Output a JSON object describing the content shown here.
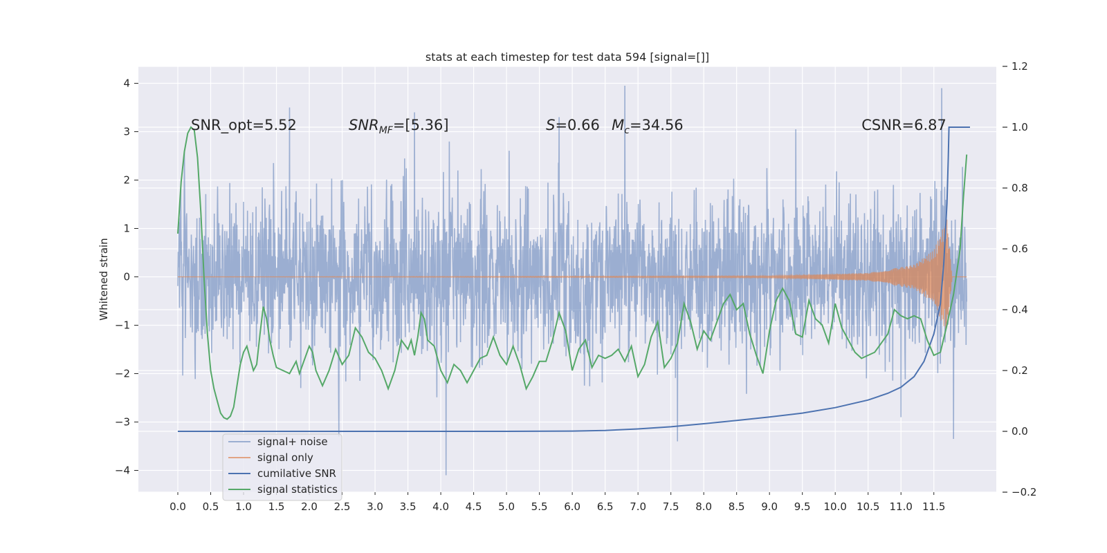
{
  "chart_data": {
    "type": "line",
    "title": "stats at each timestep for test data 594 [signal=[]]",
    "ylabel": "Whitened strain",
    "xlabel": "",
    "xlim": [
      -0.6,
      12.45
    ],
    "ylim": [
      -4.45,
      4.35
    ],
    "y2lim": [
      -0.2,
      1.2
    ],
    "grid": true,
    "legend_position": "lower-left",
    "x_ticks": [
      0.0,
      0.5,
      1.0,
      1.5,
      2.0,
      2.5,
      3.0,
      3.5,
      4.0,
      4.5,
      5.0,
      5.5,
      6.0,
      6.5,
      7.0,
      7.5,
      8.0,
      8.5,
      9.0,
      9.5,
      10.0,
      10.5,
      11.0,
      11.5
    ],
    "x_tick_labels": [
      "0.0",
      "0.5",
      "1.0",
      "1.5",
      "2.0",
      "2.5",
      "3.0",
      "3.5",
      "4.0",
      "4.5",
      "5.0",
      "5.5",
      "6.0",
      "6.5",
      "7.0",
      "7.5",
      "8.0",
      "8.5",
      "9.0",
      "9.5",
      "10.0",
      "10.5",
      "11.0",
      "11.5"
    ],
    "y_ticks": [
      4,
      3,
      2,
      1,
      0,
      -1,
      -2,
      -3,
      -4
    ],
    "y_tick_labels": [
      "4",
      "3",
      "2",
      "1",
      "0",
      "−1",
      "−2",
      "−3",
      "−4"
    ],
    "y2_ticks": [
      1.2,
      1.0,
      0.8,
      0.6,
      0.4,
      0.2,
      0.0,
      -0.2
    ],
    "y2_tick_labels": [
      "1.2",
      "1.0",
      "0.8",
      "0.6",
      "0.4",
      "0.2",
      "0.0",
      "−0.2"
    ],
    "annotations": [
      {
        "text": "SNR_opt=5.52",
        "x": 0.2,
        "y": 3.15
      },
      {
        "text": "SNR_MF=[5.36]",
        "x": 2.6,
        "y": 3.15
      },
      {
        "text": "S=0.66",
        "x": 5.6,
        "y": 3.15
      },
      {
        "text": "M_c=34.56",
        "x": 6.6,
        "y": 3.15
      },
      {
        "text": "CSNR=6.87",
        "x": 10.4,
        "y": 3.15
      }
    ],
    "series": [
      {
        "name": "signal+ noise",
        "color": "#4c72b0",
        "axis": "left",
        "x_range": [
          0.0,
          12.0
        ],
        "noise_sigma": 0.85,
        "peaks": [
          [
            0.1,
            2.6
          ],
          [
            1.7,
            3.5
          ],
          [
            2.45,
            -3.3
          ],
          [
            3.6,
            3.4
          ],
          [
            4.08,
            -4.1
          ],
          [
            5.8,
            3.3
          ],
          [
            6.8,
            3.95
          ],
          [
            7.6,
            -3.4
          ],
          [
            9.4,
            3.05
          ],
          [
            11.0,
            -2.9
          ],
          [
            11.62,
            3.9
          ],
          [
            11.8,
            -3.35
          ]
        ]
      },
      {
        "name": "signal only",
        "color": "#dd8452",
        "axis": "left",
        "x_range": [
          0.0,
          12.0
        ],
        "description_points": [
          [
            0.0,
            0.0
          ],
          [
            9.0,
            0.02
          ],
          [
            10.5,
            0.08
          ],
          [
            11.2,
            0.25
          ],
          [
            11.5,
            0.55
          ],
          [
            11.7,
            1.2
          ],
          [
            11.78,
            0.0
          ],
          [
            12.0,
            0.0
          ]
        ]
      },
      {
        "name": "cumilative SNR",
        "color": "#4c72b0",
        "axis": "right",
        "points": [
          [
            0.0,
            0.0
          ],
          [
            5.0,
            0.0
          ],
          [
            6.0,
            0.001
          ],
          [
            6.5,
            0.003
          ],
          [
            7.0,
            0.008
          ],
          [
            7.5,
            0.015
          ],
          [
            8.0,
            0.025
          ],
          [
            8.5,
            0.036
          ],
          [
            9.0,
            0.047
          ],
          [
            9.5,
            0.06
          ],
          [
            10.0,
            0.078
          ],
          [
            10.5,
            0.103
          ],
          [
            10.8,
            0.125
          ],
          [
            11.0,
            0.145
          ],
          [
            11.2,
            0.18
          ],
          [
            11.35,
            0.23
          ],
          [
            11.5,
            0.32
          ],
          [
            11.6,
            0.42
          ],
          [
            11.65,
            0.55
          ],
          [
            11.7,
            0.75
          ],
          [
            11.72,
            0.9
          ],
          [
            11.73,
            1.0
          ],
          [
            12.05,
            1.0
          ]
        ]
      },
      {
        "name": "signal statistics",
        "color": "#55a868",
        "axis": "right",
        "points": [
          [
            0.0,
            0.65
          ],
          [
            0.05,
            0.82
          ],
          [
            0.1,
            0.92
          ],
          [
            0.15,
            0.98
          ],
          [
            0.2,
            1.0
          ],
          [
            0.25,
            0.99
          ],
          [
            0.3,
            0.9
          ],
          [
            0.35,
            0.72
          ],
          [
            0.4,
            0.5
          ],
          [
            0.45,
            0.32
          ],
          [
            0.5,
            0.2
          ],
          [
            0.55,
            0.14
          ],
          [
            0.6,
            0.1
          ],
          [
            0.65,
            0.06
          ],
          [
            0.7,
            0.045
          ],
          [
            0.75,
            0.04
          ],
          [
            0.8,
            0.05
          ],
          [
            0.85,
            0.08
          ],
          [
            0.9,
            0.15
          ],
          [
            0.95,
            0.22
          ],
          [
            1.0,
            0.26
          ],
          [
            1.05,
            0.28
          ],
          [
            1.1,
            0.24
          ],
          [
            1.15,
            0.2
          ],
          [
            1.2,
            0.22
          ],
          [
            1.25,
            0.32
          ],
          [
            1.3,
            0.41
          ],
          [
            1.35,
            0.37
          ],
          [
            1.4,
            0.3
          ],
          [
            1.45,
            0.25
          ],
          [
            1.5,
            0.21
          ],
          [
            1.6,
            0.2
          ],
          [
            1.7,
            0.19
          ],
          [
            1.8,
            0.23
          ],
          [
            1.85,
            0.19
          ],
          [
            1.9,
            0.22
          ],
          [
            2.0,
            0.28
          ],
          [
            2.05,
            0.26
          ],
          [
            2.1,
            0.2
          ],
          [
            2.2,
            0.15
          ],
          [
            2.3,
            0.2
          ],
          [
            2.4,
            0.27
          ],
          [
            2.5,
            0.22
          ],
          [
            2.6,
            0.25
          ],
          [
            2.7,
            0.34
          ],
          [
            2.8,
            0.31
          ],
          [
            2.9,
            0.26
          ],
          [
            3.0,
            0.24
          ],
          [
            3.1,
            0.2
          ],
          [
            3.2,
            0.14
          ],
          [
            3.3,
            0.2
          ],
          [
            3.4,
            0.3
          ],
          [
            3.5,
            0.27
          ],
          [
            3.55,
            0.3
          ],
          [
            3.6,
            0.25
          ],
          [
            3.65,
            0.31
          ],
          [
            3.7,
            0.39
          ],
          [
            3.75,
            0.37
          ],
          [
            3.8,
            0.3
          ],
          [
            3.9,
            0.28
          ],
          [
            4.0,
            0.2
          ],
          [
            4.1,
            0.16
          ],
          [
            4.2,
            0.22
          ],
          [
            4.3,
            0.2
          ],
          [
            4.4,
            0.16
          ],
          [
            4.5,
            0.2
          ],
          [
            4.6,
            0.24
          ],
          [
            4.7,
            0.25
          ],
          [
            4.8,
            0.31
          ],
          [
            4.9,
            0.25
          ],
          [
            5.0,
            0.22
          ],
          [
            5.1,
            0.28
          ],
          [
            5.2,
            0.22
          ],
          [
            5.3,
            0.14
          ],
          [
            5.4,
            0.18
          ],
          [
            5.5,
            0.23
          ],
          [
            5.6,
            0.23
          ],
          [
            5.7,
            0.3
          ],
          [
            5.8,
            0.39
          ],
          [
            5.9,
            0.33
          ],
          [
            6.0,
            0.2
          ],
          [
            6.1,
            0.27
          ],
          [
            6.2,
            0.3
          ],
          [
            6.3,
            0.21
          ],
          [
            6.4,
            0.25
          ],
          [
            6.5,
            0.24
          ],
          [
            6.6,
            0.25
          ],
          [
            6.7,
            0.27
          ],
          [
            6.8,
            0.23
          ],
          [
            6.9,
            0.28
          ],
          [
            7.0,
            0.18
          ],
          [
            7.1,
            0.22
          ],
          [
            7.2,
            0.31
          ],
          [
            7.3,
            0.36
          ],
          [
            7.4,
            0.21
          ],
          [
            7.5,
            0.24
          ],
          [
            7.6,
            0.29
          ],
          [
            7.7,
            0.42
          ],
          [
            7.8,
            0.36
          ],
          [
            7.9,
            0.27
          ],
          [
            8.0,
            0.33
          ],
          [
            8.1,
            0.3
          ],
          [
            8.2,
            0.36
          ],
          [
            8.3,
            0.42
          ],
          [
            8.4,
            0.45
          ],
          [
            8.5,
            0.4
          ],
          [
            8.6,
            0.42
          ],
          [
            8.7,
            0.32
          ],
          [
            8.8,
            0.25
          ],
          [
            8.9,
            0.19
          ],
          [
            9.0,
            0.33
          ],
          [
            9.1,
            0.43
          ],
          [
            9.2,
            0.47
          ],
          [
            9.3,
            0.43
          ],
          [
            9.4,
            0.32
          ],
          [
            9.5,
            0.31
          ],
          [
            9.6,
            0.43
          ],
          [
            9.7,
            0.37
          ],
          [
            9.8,
            0.35
          ],
          [
            9.9,
            0.29
          ],
          [
            10.0,
            0.42
          ],
          [
            10.1,
            0.34
          ],
          [
            10.2,
            0.3
          ],
          [
            10.3,
            0.26
          ],
          [
            10.4,
            0.24
          ],
          [
            10.5,
            0.25
          ],
          [
            10.6,
            0.26
          ],
          [
            10.7,
            0.29
          ],
          [
            10.8,
            0.32
          ],
          [
            10.9,
            0.4
          ],
          [
            11.0,
            0.38
          ],
          [
            11.1,
            0.37
          ],
          [
            11.2,
            0.38
          ],
          [
            11.3,
            0.37
          ],
          [
            11.4,
            0.3
          ],
          [
            11.5,
            0.25
          ],
          [
            11.6,
            0.26
          ],
          [
            11.7,
            0.35
          ],
          [
            11.8,
            0.45
          ],
          [
            11.9,
            0.6
          ],
          [
            11.95,
            0.77
          ],
          [
            12.0,
            0.91
          ]
        ]
      }
    ]
  },
  "legend": {
    "items": [
      {
        "label": "signal+ noise",
        "color": "#4c72b0"
      },
      {
        "label": "signal only",
        "color": "#dd8452"
      },
      {
        "label": "cumilative SNR",
        "color": "#4c72b0"
      },
      {
        "label": "signal statistics",
        "color": "#55a868"
      }
    ]
  },
  "colors": {
    "plot_bg": "#eaeaf2",
    "grid": "#ffffff",
    "noise": "#4c72b0",
    "signal": "#dd8452",
    "csnr": "#4c72b0",
    "stats": "#55a868"
  }
}
